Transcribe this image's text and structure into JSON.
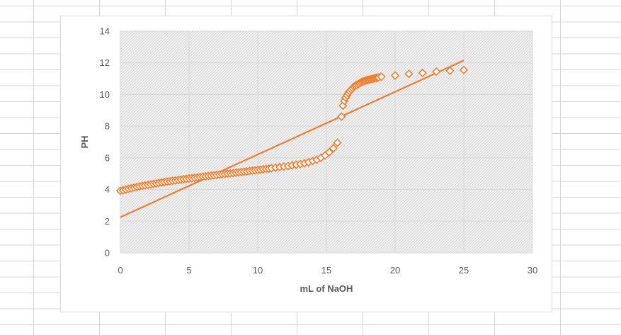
{
  "chart_data": {
    "type": "scatter",
    "title": "",
    "xlabel": "mL of NaOH",
    "ylabel": "PH",
    "xlim": [
      0,
      30
    ],
    "ylim": [
      0,
      14
    ],
    "xticks": [
      "0",
      "5",
      "10",
      "15",
      "20",
      "25",
      "30"
    ],
    "yticks": [
      "0",
      "2",
      "4",
      "6",
      "8",
      "10",
      "12",
      "14"
    ],
    "grid": true,
    "legend": "none",
    "marker_color": "#ED7D31",
    "trendline_color": "#ED7D31",
    "plot_background": "hatched light gray",
    "series": [
      {
        "marker": "diamond-open",
        "points": [
          [
            0.0,
            3.92
          ],
          [
            0.2,
            3.95
          ],
          [
            0.4,
            4.0
          ],
          [
            0.6,
            4.04
          ],
          [
            0.8,
            4.08
          ],
          [
            1.0,
            4.12
          ],
          [
            1.2,
            4.16
          ],
          [
            1.4,
            4.2
          ],
          [
            1.6,
            4.23
          ],
          [
            1.8,
            4.26
          ],
          [
            2.0,
            4.29
          ],
          [
            2.2,
            4.32
          ],
          [
            2.4,
            4.35
          ],
          [
            2.6,
            4.38
          ],
          [
            2.8,
            4.41
          ],
          [
            3.0,
            4.44
          ],
          [
            3.2,
            4.47
          ],
          [
            3.4,
            4.5
          ],
          [
            3.6,
            4.52
          ],
          [
            3.8,
            4.55
          ],
          [
            4.0,
            4.57
          ],
          [
            4.2,
            4.6
          ],
          [
            4.4,
            4.62
          ],
          [
            4.6,
            4.65
          ],
          [
            4.8,
            4.67
          ],
          [
            5.0,
            4.7
          ],
          [
            5.2,
            4.72
          ],
          [
            5.4,
            4.74
          ],
          [
            5.6,
            4.76
          ],
          [
            5.8,
            4.79
          ],
          [
            6.0,
            4.81
          ],
          [
            6.2,
            4.83
          ],
          [
            6.4,
            4.85
          ],
          [
            6.6,
            4.87
          ],
          [
            6.8,
            4.9
          ],
          [
            7.0,
            4.92
          ],
          [
            7.2,
            4.94
          ],
          [
            7.4,
            4.96
          ],
          [
            7.6,
            4.98
          ],
          [
            7.8,
            5.0
          ],
          [
            8.0,
            5.02
          ],
          [
            8.2,
            5.04
          ],
          [
            8.4,
            5.06
          ],
          [
            8.6,
            5.08
          ],
          [
            8.8,
            5.1
          ],
          [
            9.0,
            5.12
          ],
          [
            9.2,
            5.14
          ],
          [
            9.4,
            5.17
          ],
          [
            9.6,
            5.19
          ],
          [
            9.8,
            5.21
          ],
          [
            10.0,
            5.23
          ],
          [
            10.2,
            5.25
          ],
          [
            10.4,
            5.28
          ],
          [
            10.6,
            5.3
          ],
          [
            10.8,
            5.32
          ],
          [
            11.0,
            5.35
          ],
          [
            11.3,
            5.38
          ],
          [
            11.6,
            5.41
          ],
          [
            11.9,
            5.45
          ],
          [
            12.2,
            5.48
          ],
          [
            12.5,
            5.52
          ],
          [
            12.8,
            5.56
          ],
          [
            13.1,
            5.61
          ],
          [
            13.4,
            5.66
          ],
          [
            13.7,
            5.72
          ],
          [
            14.0,
            5.8
          ],
          [
            14.3,
            5.88
          ],
          [
            14.6,
            6.0
          ],
          [
            14.9,
            6.15
          ],
          [
            15.2,
            6.35
          ],
          [
            15.5,
            6.6
          ],
          [
            15.8,
            6.95
          ],
          [
            16.1,
            8.6
          ],
          [
            16.2,
            9.3
          ],
          [
            16.3,
            9.6
          ],
          [
            16.4,
            9.8
          ],
          [
            16.5,
            9.95
          ],
          [
            16.6,
            10.1
          ],
          [
            16.7,
            10.2
          ],
          [
            16.8,
            10.3
          ],
          [
            16.9,
            10.4
          ],
          [
            17.0,
            10.5
          ],
          [
            17.1,
            10.55
          ],
          [
            17.2,
            10.6
          ],
          [
            17.3,
            10.65
          ],
          [
            17.4,
            10.7
          ],
          [
            17.5,
            10.75
          ],
          [
            17.6,
            10.8
          ],
          [
            17.7,
            10.83
          ],
          [
            17.8,
            10.86
          ],
          [
            17.9,
            10.89
          ],
          [
            18.0,
            10.92
          ],
          [
            18.1,
            10.94
          ],
          [
            18.2,
            10.96
          ],
          [
            18.3,
            10.98
          ],
          [
            18.4,
            11.0
          ],
          [
            18.5,
            11.02
          ],
          [
            18.6,
            11.04
          ],
          [
            18.7,
            11.06
          ],
          [
            18.8,
            11.08
          ],
          [
            19.0,
            11.12
          ],
          [
            20.0,
            11.2
          ],
          [
            21.0,
            11.3
          ],
          [
            22.0,
            11.36
          ],
          [
            23.0,
            11.45
          ],
          [
            24.0,
            11.5
          ],
          [
            25.0,
            11.55
          ]
        ]
      }
    ],
    "trendline": {
      "type": "linear",
      "x_start": 0,
      "y_start": 2.25,
      "x_end": 25,
      "y_end": 12.15
    }
  }
}
